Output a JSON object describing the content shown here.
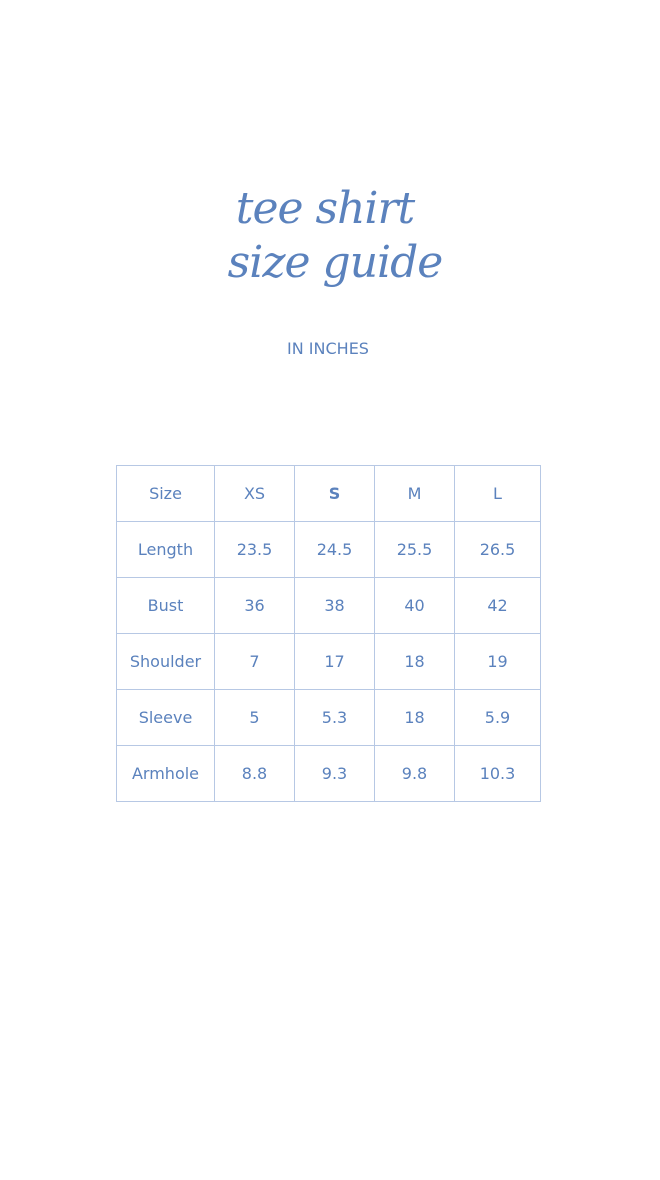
{
  "title": {
    "line1": "tee shirt",
    "line2": "size guide"
  },
  "unit_label": "IN INCHES",
  "colors": {
    "text": "#5b82bd",
    "border": "#b7c8e4"
  },
  "table": {
    "header": [
      "Size",
      "XS",
      "S",
      "M",
      "L"
    ],
    "rows": [
      [
        "Length",
        "23.5",
        "24.5",
        "25.5",
        "26.5"
      ],
      [
        "Bust",
        "36",
        "38",
        "40",
        "42"
      ],
      [
        "Shoulder",
        "7",
        "17",
        "18",
        "19"
      ],
      [
        "Sleeve",
        "5",
        "5.3",
        "18",
        "5.9"
      ],
      [
        "Armhole",
        "8.8",
        "9.3",
        "9.8",
        "10.3"
      ]
    ]
  }
}
